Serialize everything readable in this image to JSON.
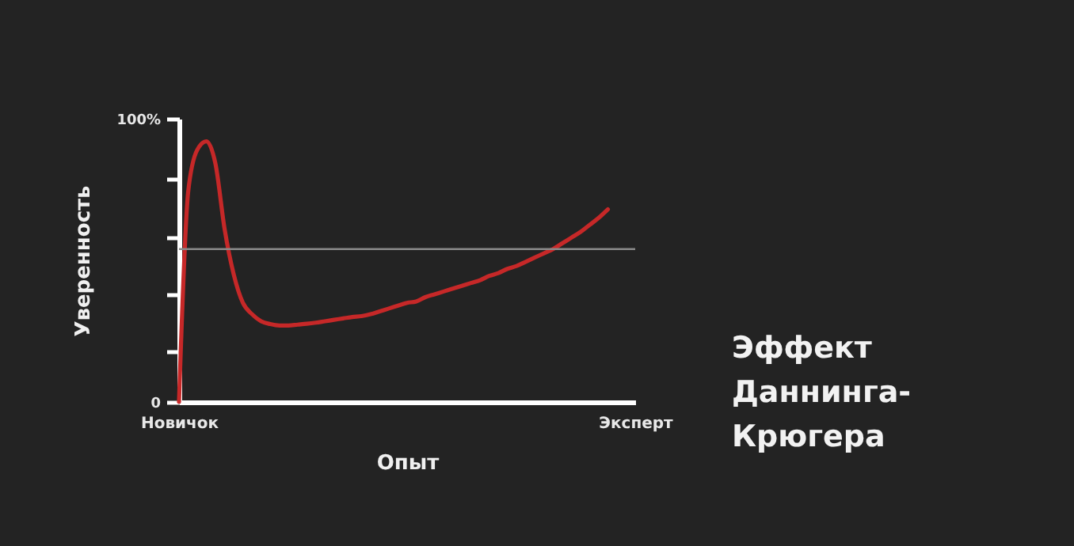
{
  "chart_data": {
    "type": "line",
    "title": "Эффект Даннинга-Крюгера",
    "xlabel": "Опыт",
    "ylabel": "Уверенность",
    "categories": [
      "Новичок",
      null,
      null,
      null,
      null,
      null,
      null,
      null,
      null,
      null,
      null,
      null,
      null,
      null,
      null,
      null,
      null,
      null,
      null,
      null,
      null,
      null,
      null,
      null,
      null,
      null,
      null,
      null,
      null,
      null,
      null,
      null,
      null,
      null,
      null,
      null,
      null,
      null,
      null,
      null,
      null,
      null,
      null,
      null,
      null,
      null,
      null,
      null,
      null,
      null,
      "Эксперт"
    ],
    "ylim": [
      0,
      100
    ],
    "yticks": [
      {
        "value": 0,
        "label": "0"
      },
      {
        "value": 18,
        "label": null
      },
      {
        "value": 38,
        "label": null
      },
      {
        "value": 58,
        "label": null
      },
      {
        "value": 79,
        "label": null
      },
      {
        "value": 100,
        "label": "100%"
      }
    ],
    "series": [
      {
        "color": "#c62828",
        "values": [
          0,
          74,
          89,
          92,
          84,
          61,
          45,
          35,
          31,
          28.5,
          27.5,
          27,
          27,
          27.3,
          27.6,
          28,
          28.5,
          29,
          29.5,
          30,
          30.3,
          31,
          32,
          33,
          34,
          35,
          35.5,
          37,
          38,
          39,
          40,
          41,
          42,
          43,
          44.5,
          45.5,
          47,
          48,
          49.5,
          51,
          52.5,
          54,
          56,
          58,
          60,
          62.5,
          65,
          68,
          null,
          null,
          null
        ]
      }
    ],
    "ref_lines": [
      {
        "axis": "y",
        "value": 54,
        "color": "#8a8a8a"
      }
    ],
    "grid": false
  }
}
